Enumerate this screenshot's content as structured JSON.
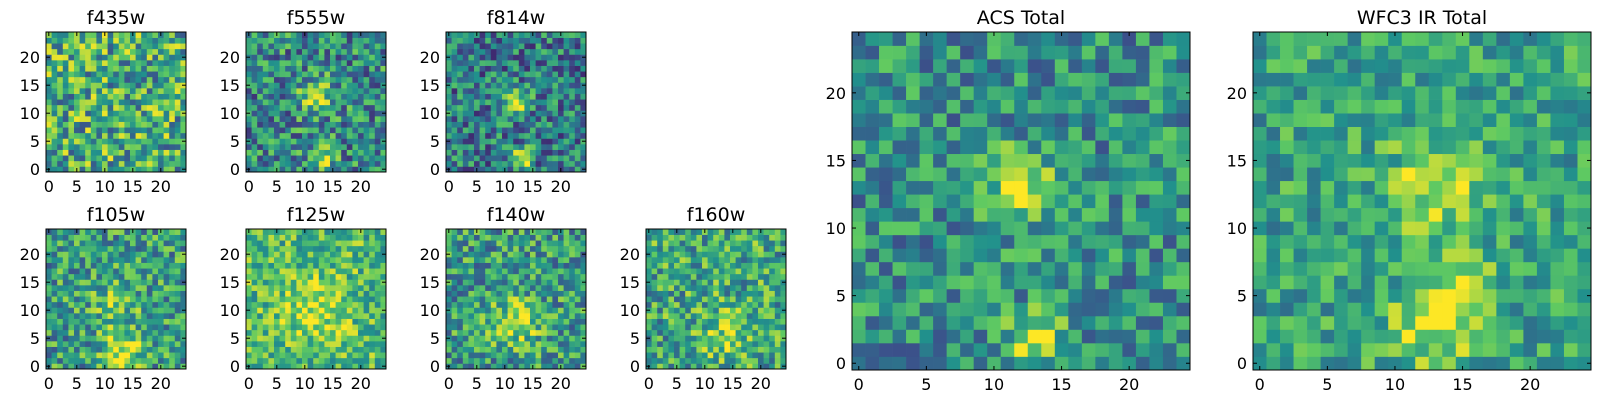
{
  "chart_data": [
    {
      "type": "heatmap",
      "title": "f435w",
      "grid_size": 25,
      "xlim": [
        -0.5,
        24.5
      ],
      "ylim": [
        -0.5,
        24.5
      ],
      "xticks": [
        0,
        5,
        10,
        15,
        20
      ],
      "yticks": [
        0,
        5,
        10,
        15,
        20
      ],
      "seed": 11,
      "base": 0.62,
      "noise": 0.36,
      "blobs": []
    },
    {
      "type": "heatmap",
      "title": "f555w",
      "grid_size": 25,
      "xlim": [
        -0.5,
        24.5
      ],
      "ylim": [
        -0.5,
        24.5
      ],
      "xticks": [
        0,
        5,
        10,
        15,
        20
      ],
      "yticks": [
        0,
        5,
        10,
        15,
        20
      ],
      "seed": 23,
      "base": 0.48,
      "noise": 0.32,
      "blobs": [
        {
          "x": 12,
          "y": 13,
          "amp": 0.45,
          "sigma": 2.0
        },
        {
          "x": 13,
          "y": 2,
          "amp": 0.5,
          "sigma": 1.4
        }
      ]
    },
    {
      "type": "heatmap",
      "title": "f814w",
      "grid_size": 25,
      "xlim": [
        -0.5,
        24.5
      ],
      "ylim": [
        -0.5,
        24.5
      ],
      "xticks": [
        0,
        5,
        10,
        15,
        20
      ],
      "yticks": [
        0,
        5,
        10,
        15,
        20
      ],
      "seed": 37,
      "base": 0.42,
      "noise": 0.3,
      "blobs": [
        {
          "x": 12,
          "y": 12,
          "amp": 0.55,
          "sigma": 1.6
        },
        {
          "x": 13,
          "y": 2,
          "amp": 0.6,
          "sigma": 1.3
        }
      ]
    },
    {
      "type": "heatmap",
      "title": "f105w",
      "grid_size": 25,
      "xlim": [
        -0.5,
        24.5
      ],
      "ylim": [
        -0.5,
        24.5
      ],
      "xticks": [
        0,
        5,
        10,
        15,
        20
      ],
      "yticks": [
        0,
        5,
        10,
        15,
        20
      ],
      "seed": 41,
      "base": 0.55,
      "noise": 0.3,
      "blobs": [
        {
          "x": 13,
          "y": 3,
          "amp": 0.4,
          "sigma": 2.5
        },
        {
          "x": 12,
          "y": 12,
          "amp": 0.2,
          "sigma": 3.0
        }
      ]
    },
    {
      "type": "heatmap",
      "title": "f125w",
      "grid_size": 25,
      "xlim": [
        -0.5,
        24.5
      ],
      "ylim": [
        -0.5,
        24.5
      ],
      "xticks": [
        0,
        5,
        10,
        15,
        20
      ],
      "yticks": [
        0,
        5,
        10,
        15,
        20
      ],
      "seed": 53,
      "base": 0.68,
      "noise": 0.26,
      "blobs": [
        {
          "x": 12,
          "y": 10,
          "amp": 0.22,
          "sigma": 4.0
        }
      ]
    },
    {
      "type": "heatmap",
      "title": "f140w",
      "grid_size": 25,
      "xlim": [
        -0.5,
        24.5
      ],
      "ylim": [
        -0.5,
        24.5
      ],
      "xticks": [
        0,
        5,
        10,
        15,
        20
      ],
      "yticks": [
        0,
        5,
        10,
        15,
        20
      ],
      "seed": 67,
      "base": 0.55,
      "noise": 0.3,
      "blobs": [
        {
          "x": 12,
          "y": 8,
          "amp": 0.35,
          "sigma": 3.0
        }
      ]
    },
    {
      "type": "heatmap",
      "title": "f160w",
      "grid_size": 25,
      "xlim": [
        -0.5,
        24.5
      ],
      "ylim": [
        -0.5,
        24.5
      ],
      "xticks": [
        0,
        5,
        10,
        15,
        20
      ],
      "yticks": [
        0,
        5,
        10,
        15,
        20
      ],
      "seed": 79,
      "base": 0.6,
      "noise": 0.3,
      "blobs": [
        {
          "x": 14,
          "y": 6,
          "amp": 0.25,
          "sigma": 3.0
        }
      ]
    },
    {
      "type": "heatmap",
      "title": "ACS Total",
      "grid_size": 25,
      "xlim": [
        -0.5,
        24.5
      ],
      "ylim": [
        -0.5,
        24.5
      ],
      "xticks": [
        0,
        5,
        10,
        15,
        20
      ],
      "yticks": [
        0,
        5,
        10,
        15,
        20
      ],
      "seed": 97,
      "base": 0.5,
      "noise": 0.26,
      "blobs": [
        {
          "x": 12,
          "y": 13,
          "amp": 0.45,
          "sigma": 1.8
        },
        {
          "x": 13,
          "y": 2,
          "amp": 0.5,
          "sigma": 1.3
        }
      ]
    },
    {
      "type": "heatmap",
      "title": "WFC3 IR Total",
      "grid_size": 25,
      "xlim": [
        -0.5,
        24.5
      ],
      "ylim": [
        -0.5,
        24.5
      ],
      "xticks": [
        0,
        5,
        10,
        15,
        20
      ],
      "yticks": [
        0,
        5,
        10,
        15,
        20
      ],
      "seed": 113,
      "base": 0.58,
      "noise": 0.22,
      "blobs": [
        {
          "x": 13,
          "y": 13,
          "amp": 0.3,
          "sigma": 2.5
        },
        {
          "x": 13,
          "y": 3,
          "amp": 0.35,
          "sigma": 2.2
        },
        {
          "x": 15,
          "y": 6,
          "amp": 0.25,
          "sigma": 1.6
        }
      ]
    }
  ],
  "colormap": [
    "#440154",
    "#3b528b",
    "#21918c",
    "#5ec962",
    "#fde725"
  ]
}
